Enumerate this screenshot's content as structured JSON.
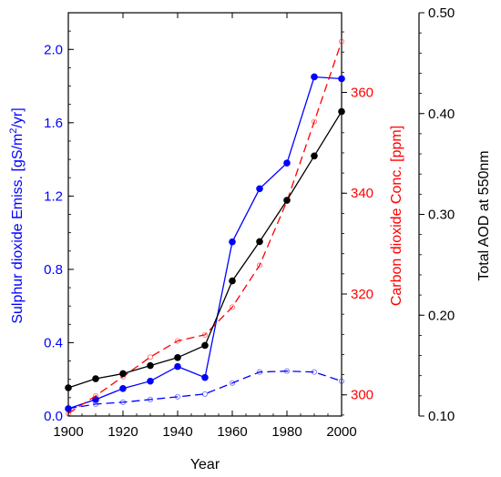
{
  "chart_data": {
    "type": "line",
    "xlabel": "Year",
    "xlim": [
      1900,
      2000
    ],
    "xticks": [
      1900,
      1920,
      1940,
      1960,
      1980,
      2000
    ],
    "x_tick_labels": [
      "1900",
      "1920",
      "1940",
      "1960",
      "1980",
      "2000"
    ],
    "axes": {
      "left": {
        "label": "Sulphur dioxide Emiss. [gS/m²/yr]",
        "label_parts": [
          "Sulphur dioxide Emiss. [gS/m",
          "2",
          "/yr]"
        ],
        "color": "#0000ff",
        "ylim": [
          0,
          2.2
        ],
        "ticks": [
          0,
          0.4,
          0.8,
          1.2,
          1.6,
          2.0
        ],
        "tick_labels": [
          "0.0",
          "0.4",
          "0.8",
          "1.2",
          "1.6",
          "2.0"
        ]
      },
      "inner_right": {
        "label": "Carbon dioxide Conc. [ppm]",
        "color": "#ff0000",
        "ylim": [
          295.8,
          375.8
        ],
        "ticks": [
          300,
          320,
          340,
          360
        ],
        "tick_labels": [
          "300",
          "320",
          "340",
          "360"
        ]
      },
      "outer_right": {
        "label": "Total AOD at 550nm",
        "color": "#000000",
        "ylim": [
          0.1,
          0.5
        ],
        "ticks": [
          0.1,
          0.2,
          0.3,
          0.4,
          0.5
        ],
        "tick_labels": [
          "0.10",
          "0.20",
          "0.30",
          "0.40",
          "0.50"
        ]
      }
    },
    "series": [
      {
        "axis": "left",
        "color": "#0000ff",
        "line": "solid",
        "marker": "filled-circle",
        "points": [
          [
            1900,
            0.04
          ],
          [
            1910,
            0.09
          ],
          [
            1920,
            0.15
          ],
          [
            1930,
            0.19
          ],
          [
            1940,
            0.27
          ],
          [
            1950,
            0.21
          ],
          [
            1960,
            0.95
          ],
          [
            1970,
            1.24
          ],
          [
            1980,
            1.38
          ],
          [
            1990,
            1.85
          ],
          [
            2000,
            1.84
          ]
        ]
      },
      {
        "axis": "left",
        "color": "#0000ff",
        "line": "dashed",
        "marker": "open-circle",
        "points": [
          [
            1900,
            0.04
          ],
          [
            1910,
            0.065
          ],
          [
            1920,
            0.075
          ],
          [
            1930,
            0.09
          ],
          [
            1940,
            0.105
          ],
          [
            1950,
            0.12
          ],
          [
            1960,
            0.18
          ],
          [
            1970,
            0.24
          ],
          [
            1980,
            0.245
          ],
          [
            1990,
            0.24
          ],
          [
            2000,
            0.19
          ]
        ]
      },
      {
        "axis": "inner_right",
        "color": "#ff0000",
        "line": "dashed",
        "marker": "open-circle",
        "points": [
          [
            1900,
            296.3
          ],
          [
            1910,
            299.8
          ],
          [
            1920,
            303.6
          ],
          [
            1930,
            307.5
          ],
          [
            1940,
            310.7
          ],
          [
            1950,
            311.9
          ],
          [
            1960,
            317.4
          ],
          [
            1970,
            325.7
          ],
          [
            1980,
            338.4
          ],
          [
            1990,
            354.2
          ],
          [
            2000,
            370.1
          ]
        ]
      },
      {
        "axis": "outer_right",
        "color": "#000000",
        "line": "solid",
        "marker": "filled-circle",
        "points": [
          [
            1900,
            0.128
          ],
          [
            1910,
            0.137
          ],
          [
            1920,
            0.142
          ],
          [
            1930,
            0.15
          ],
          [
            1940,
            0.158
          ],
          [
            1950,
            0.17
          ],
          [
            1960,
            0.234
          ],
          [
            1970,
            0.273
          ],
          [
            1980,
            0.314
          ],
          [
            1990,
            0.358
          ],
          [
            2000,
            0.402
          ]
        ]
      }
    ]
  }
}
